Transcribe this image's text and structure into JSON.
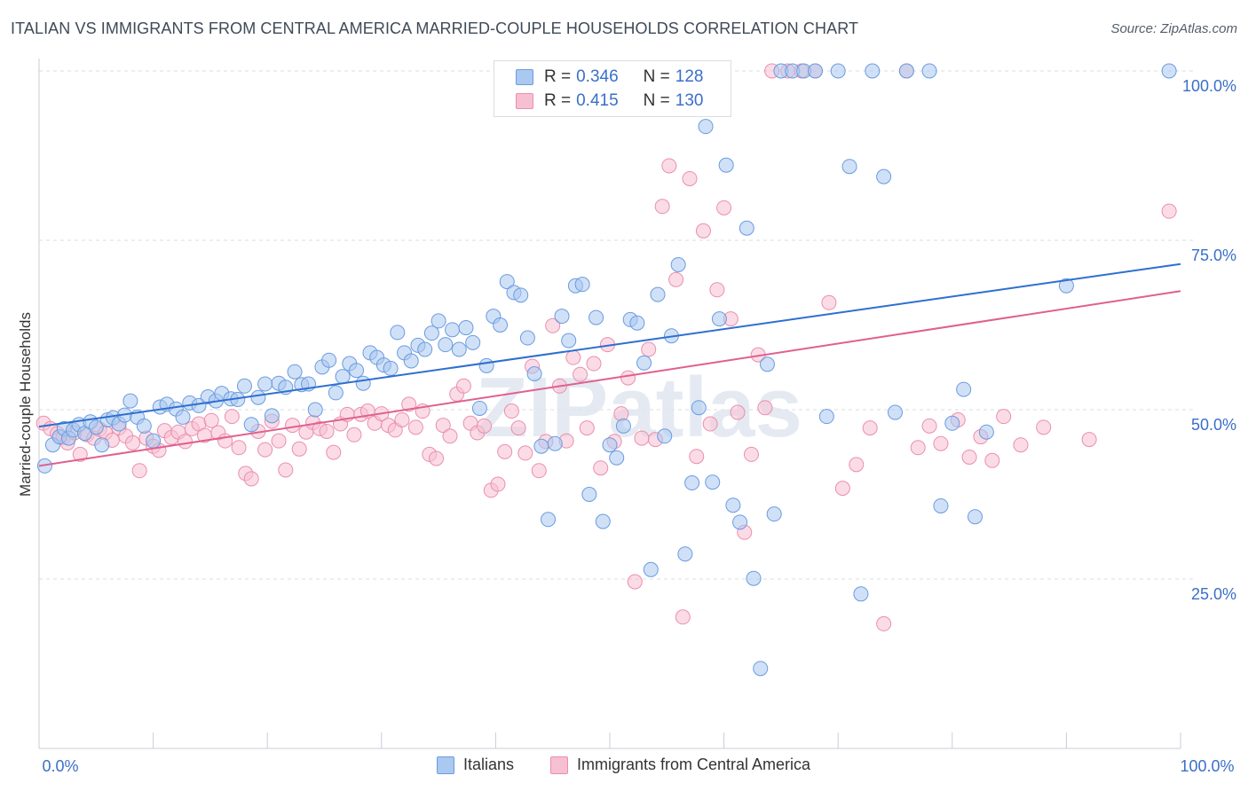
{
  "title": "ITALIAN VS IMMIGRANTS FROM CENTRAL AMERICA MARRIED-COUPLE HOUSEHOLDS CORRELATION CHART",
  "source": "Source: ZipAtlas.com",
  "watermark": "ZIPatlas",
  "legend": {
    "italians": {
      "r_label": "R =",
      "r_value": "0.346",
      "n_label": "N =",
      "n_value": "128"
    },
    "immigrants": {
      "r_label": "R =",
      "r_value": "0.415",
      "n_label": "N =",
      "n_value": "130"
    }
  },
  "colors": {
    "blue_fill": "#aac8f0",
    "blue_stroke": "#6b9be0",
    "blue_line": "#2e6fd0",
    "pink_fill": "#f7bfd2",
    "pink_stroke": "#ea8fae",
    "pink_line": "#e0608f",
    "tick_label": "#3a6fc9",
    "grid": "#d9dee4"
  },
  "chart_data": {
    "type": "scatter",
    "title": "ITALIAN VS IMMIGRANTS FROM CENTRAL AMERICA MARRIED-COUPLE HOUSEHOLDS CORRELATION CHART",
    "xlabel": "",
    "ylabel": "Married-couple Households",
    "xlim": [
      0,
      100
    ],
    "ylim": [
      0,
      100
    ],
    "x_tick_labels": [
      "0.0%",
      "100.0%"
    ],
    "y_ticks": [
      25,
      50,
      75,
      100
    ],
    "y_tick_labels": [
      "25.0%",
      "50.0%",
      "75.0%",
      "100.0%"
    ],
    "grid": true,
    "legend_position": "top-center",
    "series": [
      {
        "name": "Italians",
        "r": 0.346,
        "n": 128,
        "trend": [
          [
            0,
            47.5
          ],
          [
            100,
            71.5
          ]
        ],
        "points": [
          [
            0.5,
            41.7
          ],
          [
            1.2,
            44.8
          ],
          [
            1.8,
            46.0
          ],
          [
            2.2,
            47.2
          ],
          [
            2.6,
            45.8
          ],
          [
            3.0,
            47.0
          ],
          [
            3.5,
            47.8
          ],
          [
            4.0,
            46.5
          ],
          [
            4.5,
            48.2
          ],
          [
            5.0,
            47.4
          ],
          [
            5.5,
            44.8
          ],
          [
            6.0,
            48.5
          ],
          [
            6.5,
            48.8
          ],
          [
            7.0,
            47.9
          ],
          [
            7.5,
            49.2
          ],
          [
            8.0,
            51.3
          ],
          [
            8.6,
            48.9
          ],
          [
            9.2,
            47.6
          ],
          [
            10.0,
            45.4
          ],
          [
            10.6,
            50.4
          ],
          [
            11.2,
            50.8
          ],
          [
            12.0,
            50.1
          ],
          [
            12.6,
            48.9
          ],
          [
            13.2,
            51.0
          ],
          [
            14.0,
            50.6
          ],
          [
            14.8,
            51.9
          ],
          [
            15.5,
            51.3
          ],
          [
            16.0,
            52.4
          ],
          [
            16.8,
            51.6
          ],
          [
            17.4,
            51.5
          ],
          [
            18.0,
            53.5
          ],
          [
            18.6,
            47.8
          ],
          [
            19.2,
            51.8
          ],
          [
            19.8,
            53.8
          ],
          [
            20.4,
            49.1
          ],
          [
            21.0,
            53.9
          ],
          [
            21.6,
            53.3
          ],
          [
            22.4,
            55.6
          ],
          [
            23.0,
            53.7
          ],
          [
            23.6,
            53.8
          ],
          [
            24.2,
            50.0
          ],
          [
            24.8,
            56.3
          ],
          [
            25.4,
            57.3
          ],
          [
            26.0,
            52.5
          ],
          [
            26.6,
            54.9
          ],
          [
            27.2,
            56.8
          ],
          [
            27.8,
            55.8
          ],
          [
            28.4,
            53.9
          ],
          [
            29.0,
            58.4
          ],
          [
            29.6,
            57.7
          ],
          [
            30.2,
            56.6
          ],
          [
            30.8,
            56.1
          ],
          [
            31.4,
            61.4
          ],
          [
            32.0,
            58.4
          ],
          [
            32.6,
            57.2
          ],
          [
            33.2,
            59.5
          ],
          [
            33.8,
            58.9
          ],
          [
            34.4,
            61.3
          ],
          [
            35.0,
            63.1
          ],
          [
            35.6,
            59.6
          ],
          [
            36.2,
            61.8
          ],
          [
            36.8,
            58.9
          ],
          [
            37.4,
            62.1
          ],
          [
            38.0,
            59.9
          ],
          [
            38.6,
            50.2
          ],
          [
            39.2,
            56.5
          ],
          [
            39.8,
            63.8
          ],
          [
            40.4,
            62.5
          ],
          [
            41.0,
            68.9
          ],
          [
            41.6,
            67.3
          ],
          [
            42.2,
            66.9
          ],
          [
            42.8,
            60.6
          ],
          [
            43.4,
            55.3
          ],
          [
            44.0,
            44.6
          ],
          [
            44.6,
            33.8
          ],
          [
            45.2,
            45.0
          ],
          [
            45.8,
            63.8
          ],
          [
            46.4,
            60.2
          ],
          [
            47.0,
            68.3
          ],
          [
            47.6,
            68.5
          ],
          [
            48.2,
            37.5
          ],
          [
            48.8,
            63.6
          ],
          [
            49.4,
            33.5
          ],
          [
            50.0,
            44.8
          ],
          [
            50.6,
            42.9
          ],
          [
            51.2,
            47.6
          ],
          [
            51.8,
            63.3
          ],
          [
            52.4,
            62.8
          ],
          [
            53.0,
            56.9
          ],
          [
            53.6,
            26.4
          ],
          [
            54.2,
            67.0
          ],
          [
            54.8,
            46.1
          ],
          [
            55.4,
            60.9
          ],
          [
            56.0,
            71.4
          ],
          [
            56.6,
            28.7
          ],
          [
            57.2,
            39.2
          ],
          [
            57.8,
            50.3
          ],
          [
            58.4,
            91.8
          ],
          [
            59.0,
            39.3
          ],
          [
            59.6,
            63.4
          ],
          [
            60.2,
            86.1
          ],
          [
            60.8,
            35.9
          ],
          [
            61.4,
            33.4
          ],
          [
            62.0,
            76.8
          ],
          [
            62.6,
            25.1
          ],
          [
            63.2,
            11.8
          ],
          [
            63.8,
            56.7
          ],
          [
            64.4,
            34.6
          ],
          [
            65.0,
            100
          ],
          [
            66.0,
            100
          ],
          [
            67.0,
            100
          ],
          [
            68.0,
            100
          ],
          [
            69.0,
            49.0
          ],
          [
            70.0,
            100
          ],
          [
            71.0,
            85.9
          ],
          [
            72.0,
            22.8
          ],
          [
            73.0,
            100
          ],
          [
            74.0,
            84.4
          ],
          [
            75.0,
            49.6
          ],
          [
            76.0,
            100
          ],
          [
            78.0,
            100
          ],
          [
            79.0,
            35.8
          ],
          [
            80.0,
            48.0
          ],
          [
            81.0,
            53.0
          ],
          [
            82.0,
            34.2
          ],
          [
            83.0,
            46.7
          ],
          [
            90.0,
            68.3
          ],
          [
            99.0,
            100
          ]
        ]
      },
      {
        "name": "Immigrants from Central America",
        "r": 0.415,
        "n": 130,
        "trend": [
          [
            0,
            41.7
          ],
          [
            100,
            67.5
          ]
        ],
        "points": [
          [
            0.4,
            48.0
          ],
          [
            1.0,
            47.2
          ],
          [
            1.6,
            46.5
          ],
          [
            2.1,
            45.9
          ],
          [
            2.5,
            45.1
          ],
          [
            3.1,
            46.6
          ],
          [
            3.6,
            43.4
          ],
          [
            4.2,
            46.3
          ],
          [
            4.8,
            45.8
          ],
          [
            5.3,
            47.1
          ],
          [
            5.8,
            46.6
          ],
          [
            6.4,
            45.5
          ],
          [
            7.0,
            47.3
          ],
          [
            7.6,
            46.1
          ],
          [
            8.2,
            45.1
          ],
          [
            8.8,
            41.0
          ],
          [
            9.4,
            45.8
          ],
          [
            10.0,
            44.6
          ],
          [
            10.5,
            44.0
          ],
          [
            11.0,
            46.9
          ],
          [
            11.6,
            45.9
          ],
          [
            12.2,
            46.7
          ],
          [
            12.8,
            45.3
          ],
          [
            13.4,
            47.2
          ],
          [
            14.0,
            47.9
          ],
          [
            14.5,
            46.2
          ],
          [
            15.1,
            48.4
          ],
          [
            15.7,
            46.6
          ],
          [
            16.3,
            45.4
          ],
          [
            16.9,
            49.0
          ],
          [
            17.5,
            44.4
          ],
          [
            18.1,
            40.6
          ],
          [
            18.6,
            39.8
          ],
          [
            19.2,
            46.8
          ],
          [
            19.8,
            44.1
          ],
          [
            20.4,
            48.3
          ],
          [
            21.0,
            45.4
          ],
          [
            21.6,
            41.1
          ],
          [
            22.2,
            47.7
          ],
          [
            22.8,
            44.2
          ],
          [
            23.4,
            46.7
          ],
          [
            24.0,
            48.1
          ],
          [
            24.6,
            47.2
          ],
          [
            25.2,
            46.8
          ],
          [
            25.8,
            43.7
          ],
          [
            26.4,
            47.9
          ],
          [
            27.0,
            49.3
          ],
          [
            27.6,
            46.3
          ],
          [
            28.2,
            49.3
          ],
          [
            28.8,
            49.8
          ],
          [
            29.4,
            48.0
          ],
          [
            30.0,
            49.4
          ],
          [
            30.6,
            47.7
          ],
          [
            31.2,
            47.0
          ],
          [
            31.8,
            48.5
          ],
          [
            32.4,
            50.8
          ],
          [
            33.0,
            47.4
          ],
          [
            33.6,
            49.8
          ],
          [
            34.2,
            43.4
          ],
          [
            34.8,
            42.8
          ],
          [
            35.4,
            47.7
          ],
          [
            36.0,
            46.1
          ],
          [
            36.6,
            52.3
          ],
          [
            37.2,
            53.5
          ],
          [
            37.8,
            48.0
          ],
          [
            38.4,
            46.6
          ],
          [
            39.0,
            47.6
          ],
          [
            39.6,
            38.1
          ],
          [
            40.2,
            39.0
          ],
          [
            40.8,
            43.8
          ],
          [
            41.4,
            49.8
          ],
          [
            42.0,
            47.3
          ],
          [
            42.6,
            43.6
          ],
          [
            43.2,
            56.4
          ],
          [
            43.8,
            41.0
          ],
          [
            44.4,
            45.3
          ],
          [
            45.0,
            62.4
          ],
          [
            45.6,
            53.5
          ],
          [
            46.2,
            45.4
          ],
          [
            46.8,
            57.7
          ],
          [
            47.4,
            55.2
          ],
          [
            48.0,
            47.3
          ],
          [
            48.6,
            56.8
          ],
          [
            49.2,
            41.4
          ],
          [
            49.8,
            59.6
          ],
          [
            50.4,
            45.3
          ],
          [
            51.0,
            49.4
          ],
          [
            51.6,
            54.7
          ],
          [
            52.2,
            24.6
          ],
          [
            52.8,
            45.8
          ],
          [
            53.4,
            58.9
          ],
          [
            54.0,
            45.6
          ],
          [
            54.6,
            80.0
          ],
          [
            55.2,
            86.0
          ],
          [
            55.8,
            69.2
          ],
          [
            56.4,
            19.4
          ],
          [
            57.0,
            84.1
          ],
          [
            57.6,
            43.1
          ],
          [
            58.2,
            76.4
          ],
          [
            58.8,
            47.9
          ],
          [
            59.4,
            67.7
          ],
          [
            60.0,
            79.8
          ],
          [
            60.6,
            63.4
          ],
          [
            61.2,
            49.6
          ],
          [
            61.8,
            31.9
          ],
          [
            62.4,
            43.4
          ],
          [
            63.0,
            58.1
          ],
          [
            63.6,
            50.3
          ],
          [
            64.2,
            100
          ],
          [
            65.6,
            100
          ],
          [
            66.8,
            100
          ],
          [
            68.0,
            100
          ],
          [
            69.2,
            65.8
          ],
          [
            70.4,
            38.4
          ],
          [
            71.6,
            41.9
          ],
          [
            72.8,
            47.3
          ],
          [
            74.0,
            18.4
          ],
          [
            76.0,
            100
          ],
          [
            77.0,
            44.4
          ],
          [
            78.0,
            47.6
          ],
          [
            79.0,
            45.0
          ],
          [
            80.5,
            48.5
          ],
          [
            81.5,
            43.0
          ],
          [
            82.5,
            46.0
          ],
          [
            83.5,
            42.5
          ],
          [
            84.5,
            49.0
          ],
          [
            86.0,
            44.8
          ],
          [
            88.0,
            47.4
          ],
          [
            92.0,
            45.6
          ],
          [
            99.0,
            79.3
          ]
        ]
      }
    ]
  },
  "bottom_legend": [
    {
      "label": "Italians"
    },
    {
      "label": "Immigrants from Central America"
    }
  ]
}
